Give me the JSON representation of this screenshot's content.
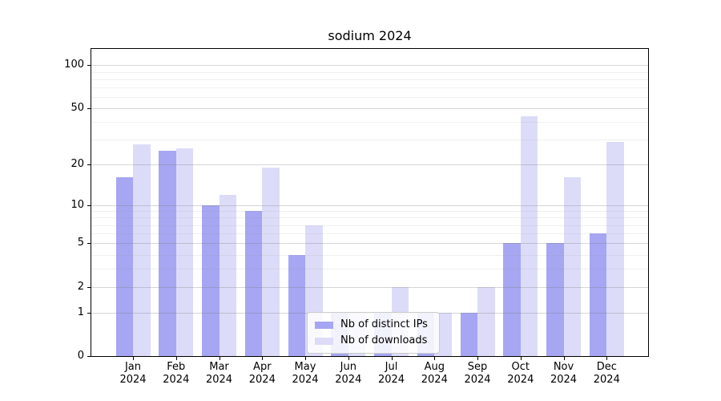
{
  "chart_data": {
    "type": "bar",
    "title": "sodium 2024",
    "categories": [
      "Jan",
      "Feb",
      "Mar",
      "Apr",
      "May",
      "Jun",
      "Jul",
      "Aug",
      "Sep",
      "Oct",
      "Nov",
      "Dec"
    ],
    "x_year_label": "2024",
    "series": [
      {
        "name": "Nb of distinct IPs",
        "color": "#a6a6f2",
        "values": [
          16,
          25,
          10,
          9,
          4,
          1,
          1,
          1,
          1,
          5,
          5,
          6
        ]
      },
      {
        "name": "Nb of downloads",
        "color": "#dcdcf9",
        "values": [
          28,
          26,
          12,
          19,
          7,
          1,
          2,
          1,
          2,
          44,
          16,
          29
        ]
      }
    ],
    "yscale": "log1p",
    "ylim": [
      0,
      130
    ],
    "yticks": [
      0,
      1,
      2,
      5,
      10,
      20,
      50,
      100
    ],
    "y_minor_gridlines": [
      3,
      4,
      6,
      7,
      8,
      9,
      30,
      40,
      60,
      70,
      80,
      90
    ],
    "grid": true,
    "legend_position": "lower center",
    "xlabel": "",
    "ylabel": ""
  }
}
